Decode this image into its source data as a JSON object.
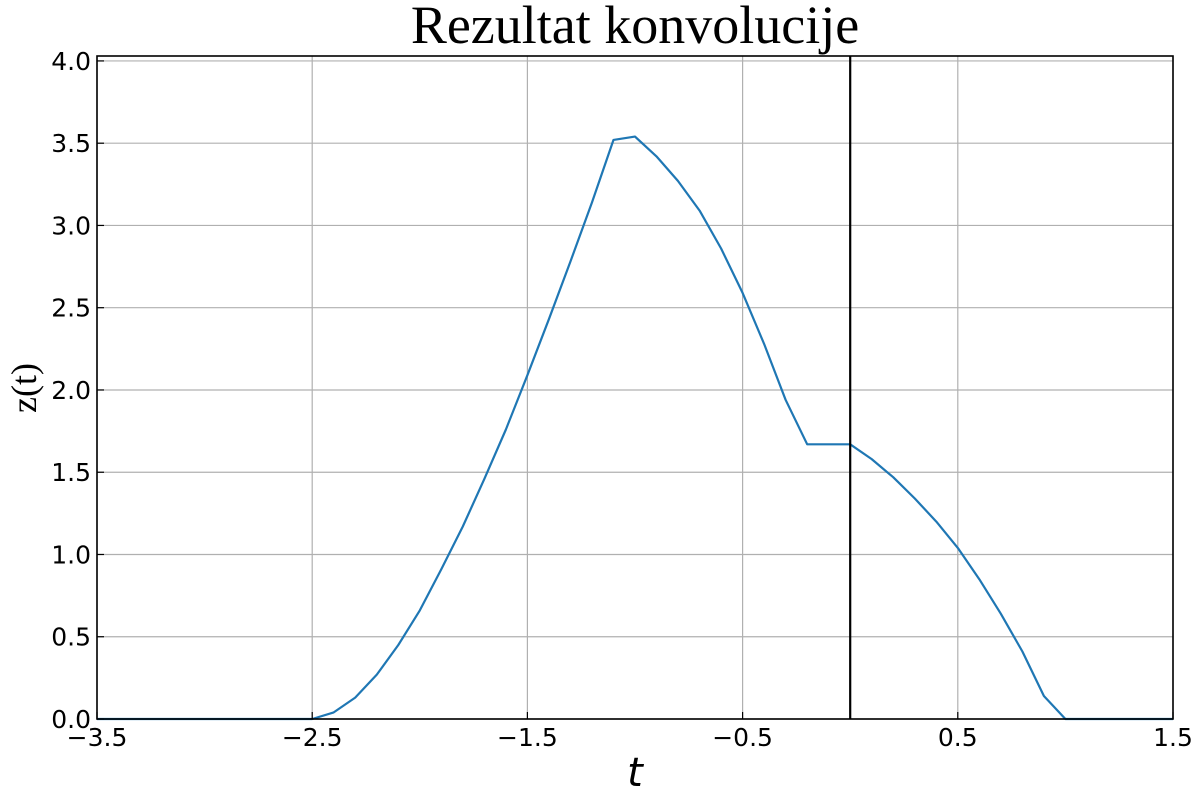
{
  "chart_data": {
    "type": "line",
    "title": "Rezultat konvolucije",
    "xlabel": "t",
    "ylabel": "z(t)",
    "xlim": [
      -3.5,
      1.5
    ],
    "ylim": [
      0.0,
      4.03
    ],
    "x_ticks": [
      -3.5,
      -2.5,
      -1.5,
      -0.5,
      0.5,
      1.5
    ],
    "x_tick_labels": [
      "−3.5",
      "−2.5",
      "−1.5",
      "−0.5",
      "0.5",
      "1.5"
    ],
    "y_ticks": [
      0.0,
      0.5,
      1.0,
      1.5,
      2.0,
      2.5,
      3.0,
      3.5,
      4.0
    ],
    "y_tick_labels": [
      "0.0",
      "0.5",
      "1.0",
      "1.5",
      "2.0",
      "2.5",
      "3.0",
      "3.5",
      "4.0"
    ],
    "grid": true,
    "vertical_line": {
      "x": 0.0,
      "color": "#000000"
    },
    "series": [
      {
        "color": "#1f77b4",
        "x": [
          -3.5,
          -2.5,
          -2.4,
          -2.3,
          -2.2,
          -2.1,
          -2.0,
          -1.9,
          -1.8,
          -1.7,
          -1.6,
          -1.5,
          -1.4,
          -1.3,
          -1.2,
          -1.1,
          -1.0,
          -0.9,
          -0.8,
          -0.7,
          -0.6,
          -0.5,
          -0.4,
          -0.3,
          -0.2,
          -0.1,
          0.0,
          0.1,
          0.2,
          0.3,
          0.4,
          0.5,
          0.6,
          0.7,
          0.8,
          0.9,
          1.0,
          1.5
        ],
        "y": [
          0.0,
          0.0,
          0.04,
          0.13,
          0.27,
          0.45,
          0.66,
          0.91,
          1.17,
          1.46,
          1.76,
          2.09,
          2.43,
          2.78,
          3.14,
          3.52,
          3.54,
          3.42,
          3.27,
          3.09,
          2.86,
          2.59,
          2.28,
          1.94,
          1.67,
          1.67,
          1.67,
          1.58,
          1.47,
          1.34,
          1.2,
          1.04,
          0.85,
          0.64,
          0.41,
          0.14,
          0.0,
          0.0
        ]
      }
    ]
  }
}
